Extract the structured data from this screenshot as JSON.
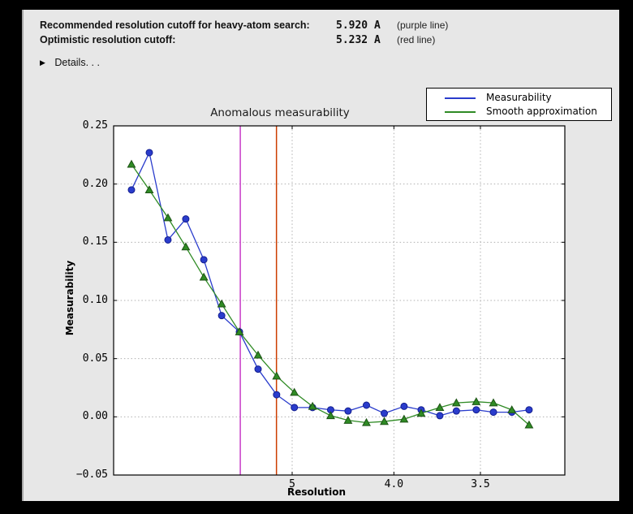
{
  "panel": {
    "rows": [
      {
        "label": "Recommended resolution cutoff for heavy-atom search:",
        "value": "5.920 A",
        "note": "(purple line)"
      },
      {
        "label": "Optimistic resolution cutoff:",
        "value": "5.232 A",
        "note": "(red line)"
      }
    ],
    "details_label": "Details. . ."
  },
  "chart_data": {
    "type": "line",
    "title": "Anomalous measurability",
    "xlabel": "Resolution",
    "ylabel": "Measurability",
    "x_axis": {
      "scale": "inverse_d_squared",
      "unit": "Angstrom",
      "tick_labels": [
        "5",
        "4.0",
        "3.5"
      ],
      "tick_d_values": [
        5.0,
        4.0,
        3.5
      ],
      "grid": true
    },
    "y_axis": {
      "ylim": [
        -0.05,
        0.25
      ],
      "tick_labels": [
        "0.25",
        "0.20",
        "0.15",
        "0.10",
        "0.05",
        "0.00",
        "−0.05"
      ],
      "tick_values": [
        0.25,
        0.2,
        0.15,
        0.1,
        0.05,
        0.0,
        -0.05
      ],
      "grid": true
    },
    "x_d_values": [
      14.96,
      10.9,
      8.93,
      7.79,
      6.99,
      6.4,
      5.94,
      5.55,
      5.23,
      4.97,
      4.74,
      4.54,
      4.37,
      4.21,
      4.07,
      3.93,
      3.82,
      3.71,
      3.62,
      3.52,
      3.44,
      3.36,
      3.29
    ],
    "series": [
      {
        "name": "Measurability",
        "color": "#2a3ccc",
        "marker_edge": "#141f8f",
        "marker": "circle",
        "values": [
          0.195,
          0.227,
          0.152,
          0.17,
          0.135,
          0.087,
          0.073,
          0.041,
          0.019,
          0.008,
          0.008,
          0.006,
          0.005,
          0.01,
          0.003,
          0.009,
          0.006,
          0.001,
          0.005,
          0.006,
          0.004,
          0.004,
          0.006
        ]
      },
      {
        "name": "Smooth approximation",
        "color": "#2f8b24",
        "marker_edge": "#1c5214",
        "marker": "triangle",
        "values": [
          0.217,
          0.195,
          0.171,
          0.146,
          0.12,
          0.097,
          0.073,
          0.053,
          0.035,
          0.021,
          0.009,
          0.001,
          -0.003,
          -0.005,
          -0.004,
          -0.002,
          0.003,
          0.008,
          0.012,
          0.013,
          0.012,
          0.006,
          -0.007
        ]
      }
    ],
    "vlines": [
      {
        "d": 5.92,
        "color": "#c83cc8",
        "name": "purple line"
      },
      {
        "d": 5.232,
        "color": "#cc3d00",
        "name": "red line"
      }
    ],
    "legend_position": "upper right",
    "grid_style": "dotted"
  }
}
